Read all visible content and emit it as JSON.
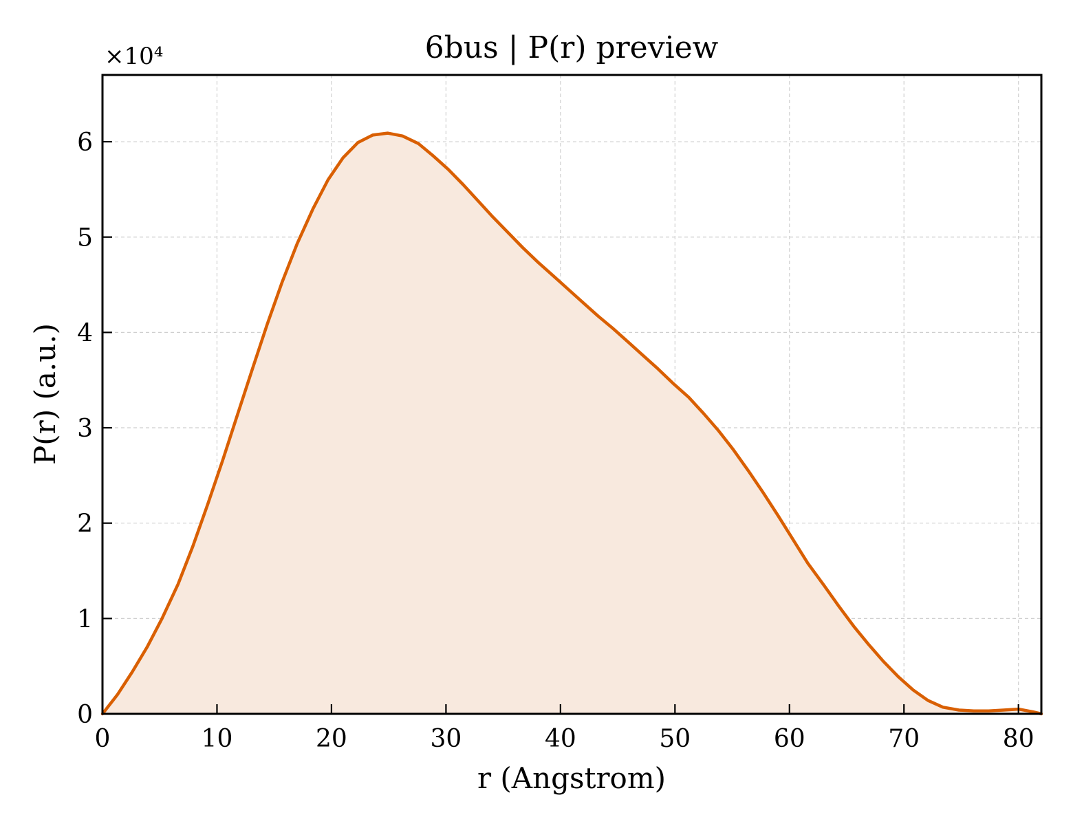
{
  "chart_data": {
    "type": "area",
    "title": "6bus | P(r) preview",
    "xlabel": "r (Angstrom)",
    "ylabel": "P(r) (a.u.)",
    "y_multiplier": "×10⁴",
    "xlim": [
      0,
      82
    ],
    "ylim": [
      0,
      6.7
    ],
    "x_ticks": [
      0,
      10,
      20,
      30,
      40,
      50,
      60,
      70,
      80
    ],
    "y_ticks": [
      0,
      1,
      2,
      3,
      4,
      5,
      6
    ],
    "grid": true,
    "colors": {
      "line": "#d95f02",
      "fill": "#f8e9de"
    },
    "series": [
      {
        "x": [
          0,
          1.3,
          2.6,
          3.9,
          5.2,
          6.6,
          7.9,
          9.2,
          10.5,
          11.8,
          13.1,
          14.4,
          15.7,
          17.0,
          18.4,
          19.7,
          21.0,
          22.3,
          23.6,
          24.9,
          26.2,
          27.6,
          28.9,
          30.2,
          31.5,
          32.8,
          34.1,
          35.4,
          36.7,
          38.0,
          39.4,
          40.7,
          42.0,
          43.3,
          44.6,
          45.9,
          47.2,
          48.5,
          49.8,
          51.2,
          52.5,
          53.8,
          55.1,
          56.4,
          57.7,
          59.0,
          60.3,
          61.6,
          63.0,
          64.3,
          65.6,
          66.9,
          68.2,
          69.5,
          70.8,
          72.1,
          73.4,
          74.8,
          76.1,
          77.4,
          78.7,
          80.0,
          81.3,
          82.0
        ],
        "values": [
          0.0,
          0.2,
          0.44,
          0.7,
          1.0,
          1.36,
          1.76,
          2.2,
          2.66,
          3.14,
          3.62,
          4.09,
          4.53,
          4.93,
          5.3,
          5.6,
          5.83,
          5.99,
          6.07,
          6.09,
          6.06,
          5.98,
          5.85,
          5.71,
          5.55,
          5.38,
          5.21,
          5.05,
          4.89,
          4.74,
          4.59,
          4.45,
          4.31,
          4.17,
          4.04,
          3.9,
          3.76,
          3.62,
          3.47,
          3.32,
          3.15,
          2.97,
          2.77,
          2.55,
          2.32,
          2.08,
          1.83,
          1.58,
          1.35,
          1.13,
          0.92,
          0.73,
          0.55,
          0.39,
          0.25,
          0.14,
          0.07,
          0.04,
          0.03,
          0.03,
          0.04,
          0.05,
          0.02,
          0.0
        ]
      }
    ]
  }
}
